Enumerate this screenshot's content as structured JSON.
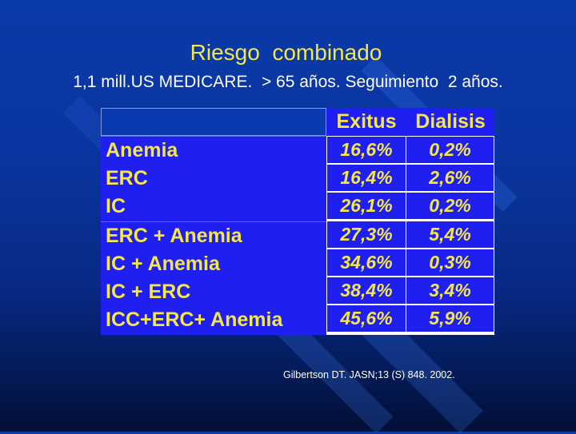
{
  "slide": {
    "title": "Riesgo  combinado",
    "subtitle": "1,1 mill.US MEDICARE.  > 65 años. Seguimiento  2 años.",
    "citation": "Gilbertson DT. JASN;13 (S) 848. 2002."
  },
  "table": {
    "headers": [
      "Exitus",
      "Dialisis"
    ],
    "rows": [
      {
        "label": "Anemia",
        "exitus": "16,6%",
        "dialisis": "0,2%"
      },
      {
        "label": "ERC",
        "exitus": "16,4%",
        "dialisis": "2,6%"
      },
      {
        "label": "IC",
        "exitus": "26,1%",
        "dialisis": "0,2%"
      },
      {
        "label": "ERC + Anemia",
        "exitus": "27,3%",
        "dialisis": "5,4%"
      },
      {
        "label": "IC + Anemia",
        "exitus": "34,6%",
        "dialisis": "0,3%"
      },
      {
        "label": "IC + ERC",
        "exitus": "38,4%",
        "dialisis": "3,4%"
      },
      {
        "label": "ICC+ERC+ Anemia",
        "exitus": "45,6%",
        "dialisis": "5,9%"
      }
    ]
  },
  "colors": {
    "title": "#f5e64a",
    "table_fill": "#1f1ff2",
    "background": "#0a3aa8"
  }
}
